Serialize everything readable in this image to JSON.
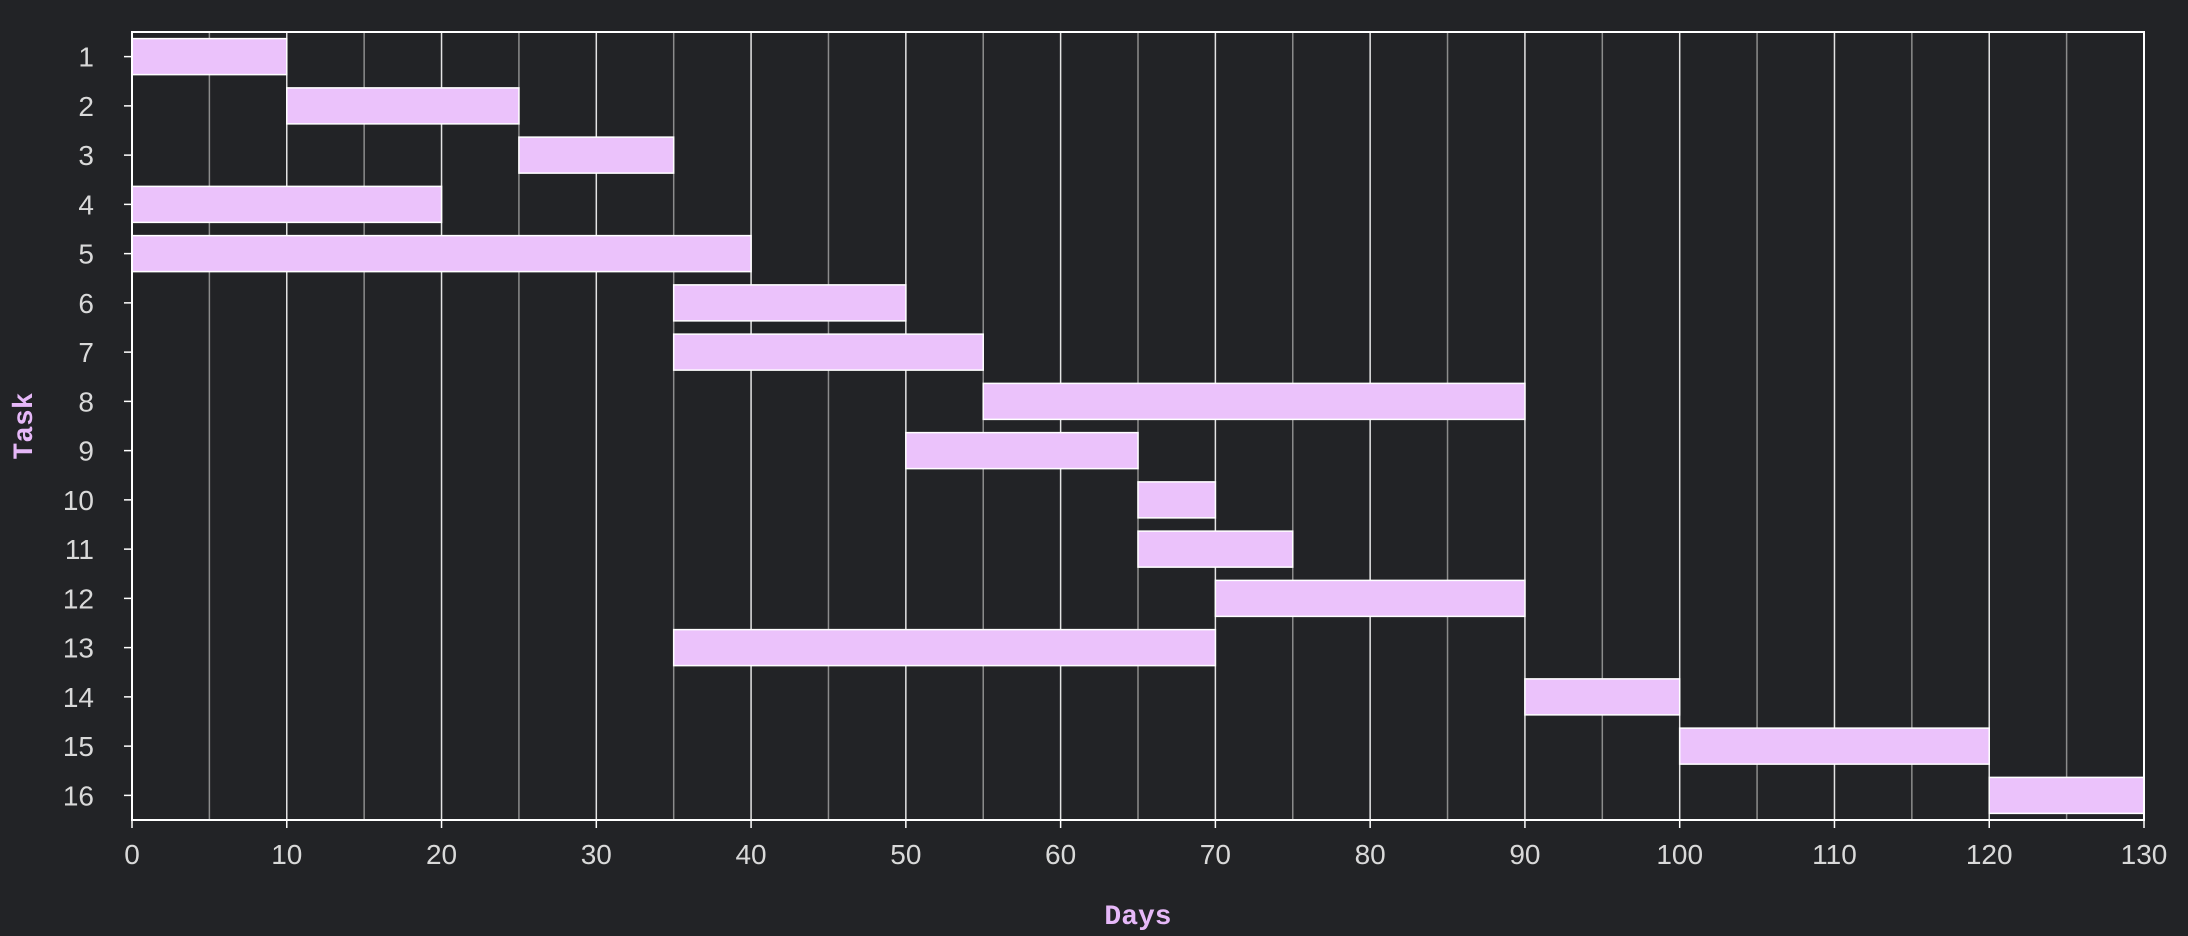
{
  "chart_data": {
    "type": "bar",
    "orientation": "horizontal-gantt",
    "title": "",
    "xlabel": "Days",
    "ylabel": "Task",
    "xlim": [
      0,
      130
    ],
    "x_ticks": [
      0,
      10,
      20,
      30,
      40,
      50,
      60,
      70,
      80,
      90,
      100,
      110,
      120,
      130
    ],
    "x_minor_step": 5,
    "grid": true,
    "categories": [
      "1",
      "2",
      "3",
      "4",
      "5",
      "6",
      "7",
      "8",
      "9",
      "10",
      "11",
      "12",
      "13",
      "14",
      "15",
      "16"
    ],
    "tasks": [
      {
        "task": "1",
        "start": 0,
        "end": 10
      },
      {
        "task": "2",
        "start": 10,
        "end": 25
      },
      {
        "task": "3",
        "start": 25,
        "end": 35
      },
      {
        "task": "4",
        "start": 0,
        "end": 20
      },
      {
        "task": "5",
        "start": 0,
        "end": 40
      },
      {
        "task": "6",
        "start": 35,
        "end": 50
      },
      {
        "task": "7",
        "start": 35,
        "end": 55
      },
      {
        "task": "8",
        "start": 55,
        "end": 90
      },
      {
        "task": "9",
        "start": 50,
        "end": 65
      },
      {
        "task": "10",
        "start": 65,
        "end": 70
      },
      {
        "task": "11",
        "start": 65,
        "end": 75
      },
      {
        "task": "12",
        "start": 70,
        "end": 90
      },
      {
        "task": "13",
        "start": 35,
        "end": 70
      },
      {
        "task": "14",
        "start": 90,
        "end": 100
      },
      {
        "task": "15",
        "start": 100,
        "end": 120
      },
      {
        "task": "16",
        "start": 120,
        "end": 130
      }
    ],
    "colors": {
      "background": "#222326",
      "bar_fill": "#ebc2fb",
      "bar_stroke": "#ffffff",
      "grid_major": "#e4e4e4",
      "grid_minor": "#8c8c8c",
      "frame": "#ffffff",
      "tick_label": "#d9d9d9",
      "axis_title": "#e6b8f8"
    }
  }
}
